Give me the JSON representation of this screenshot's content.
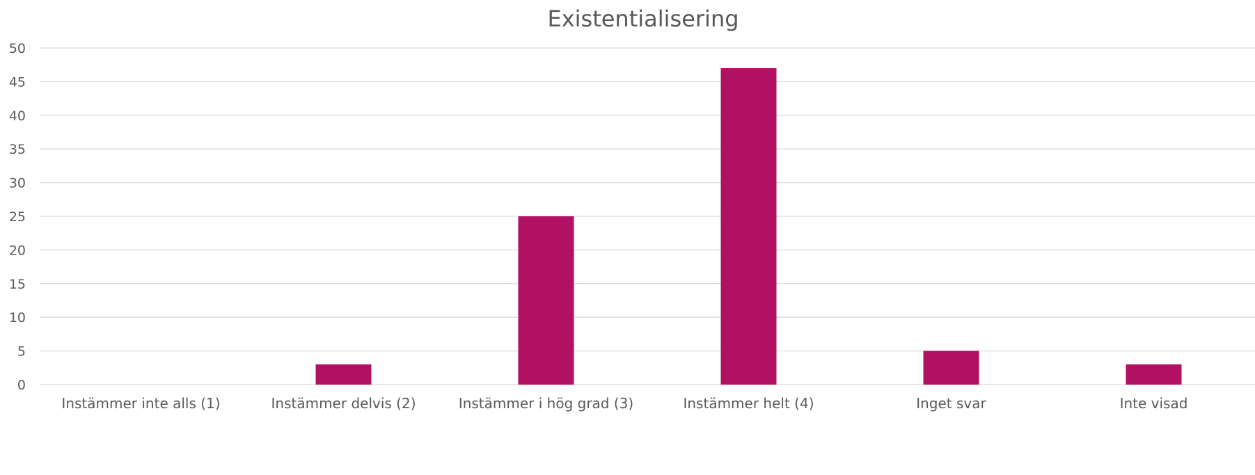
{
  "chart_data": {
    "type": "bar",
    "title": "Existentialisering",
    "xlabel": "",
    "ylabel": "",
    "categories": [
      "Instämmer inte alls (1)",
      "Instämmer delvis (2)",
      "Instämmer i hög grad (3)",
      "Instämmer helt (4)",
      "Inget svar",
      "Inte visad"
    ],
    "values": [
      0,
      3,
      25,
      47,
      5,
      3
    ],
    "ylim": [
      0,
      50
    ],
    "yticks": [
      0,
      5,
      10,
      15,
      20,
      25,
      30,
      35,
      40,
      45,
      50
    ],
    "grid": true,
    "legend": "none"
  },
  "colors": {
    "bar": "#B01163",
    "grid": "#d9d9d9",
    "text": "#595959"
  }
}
